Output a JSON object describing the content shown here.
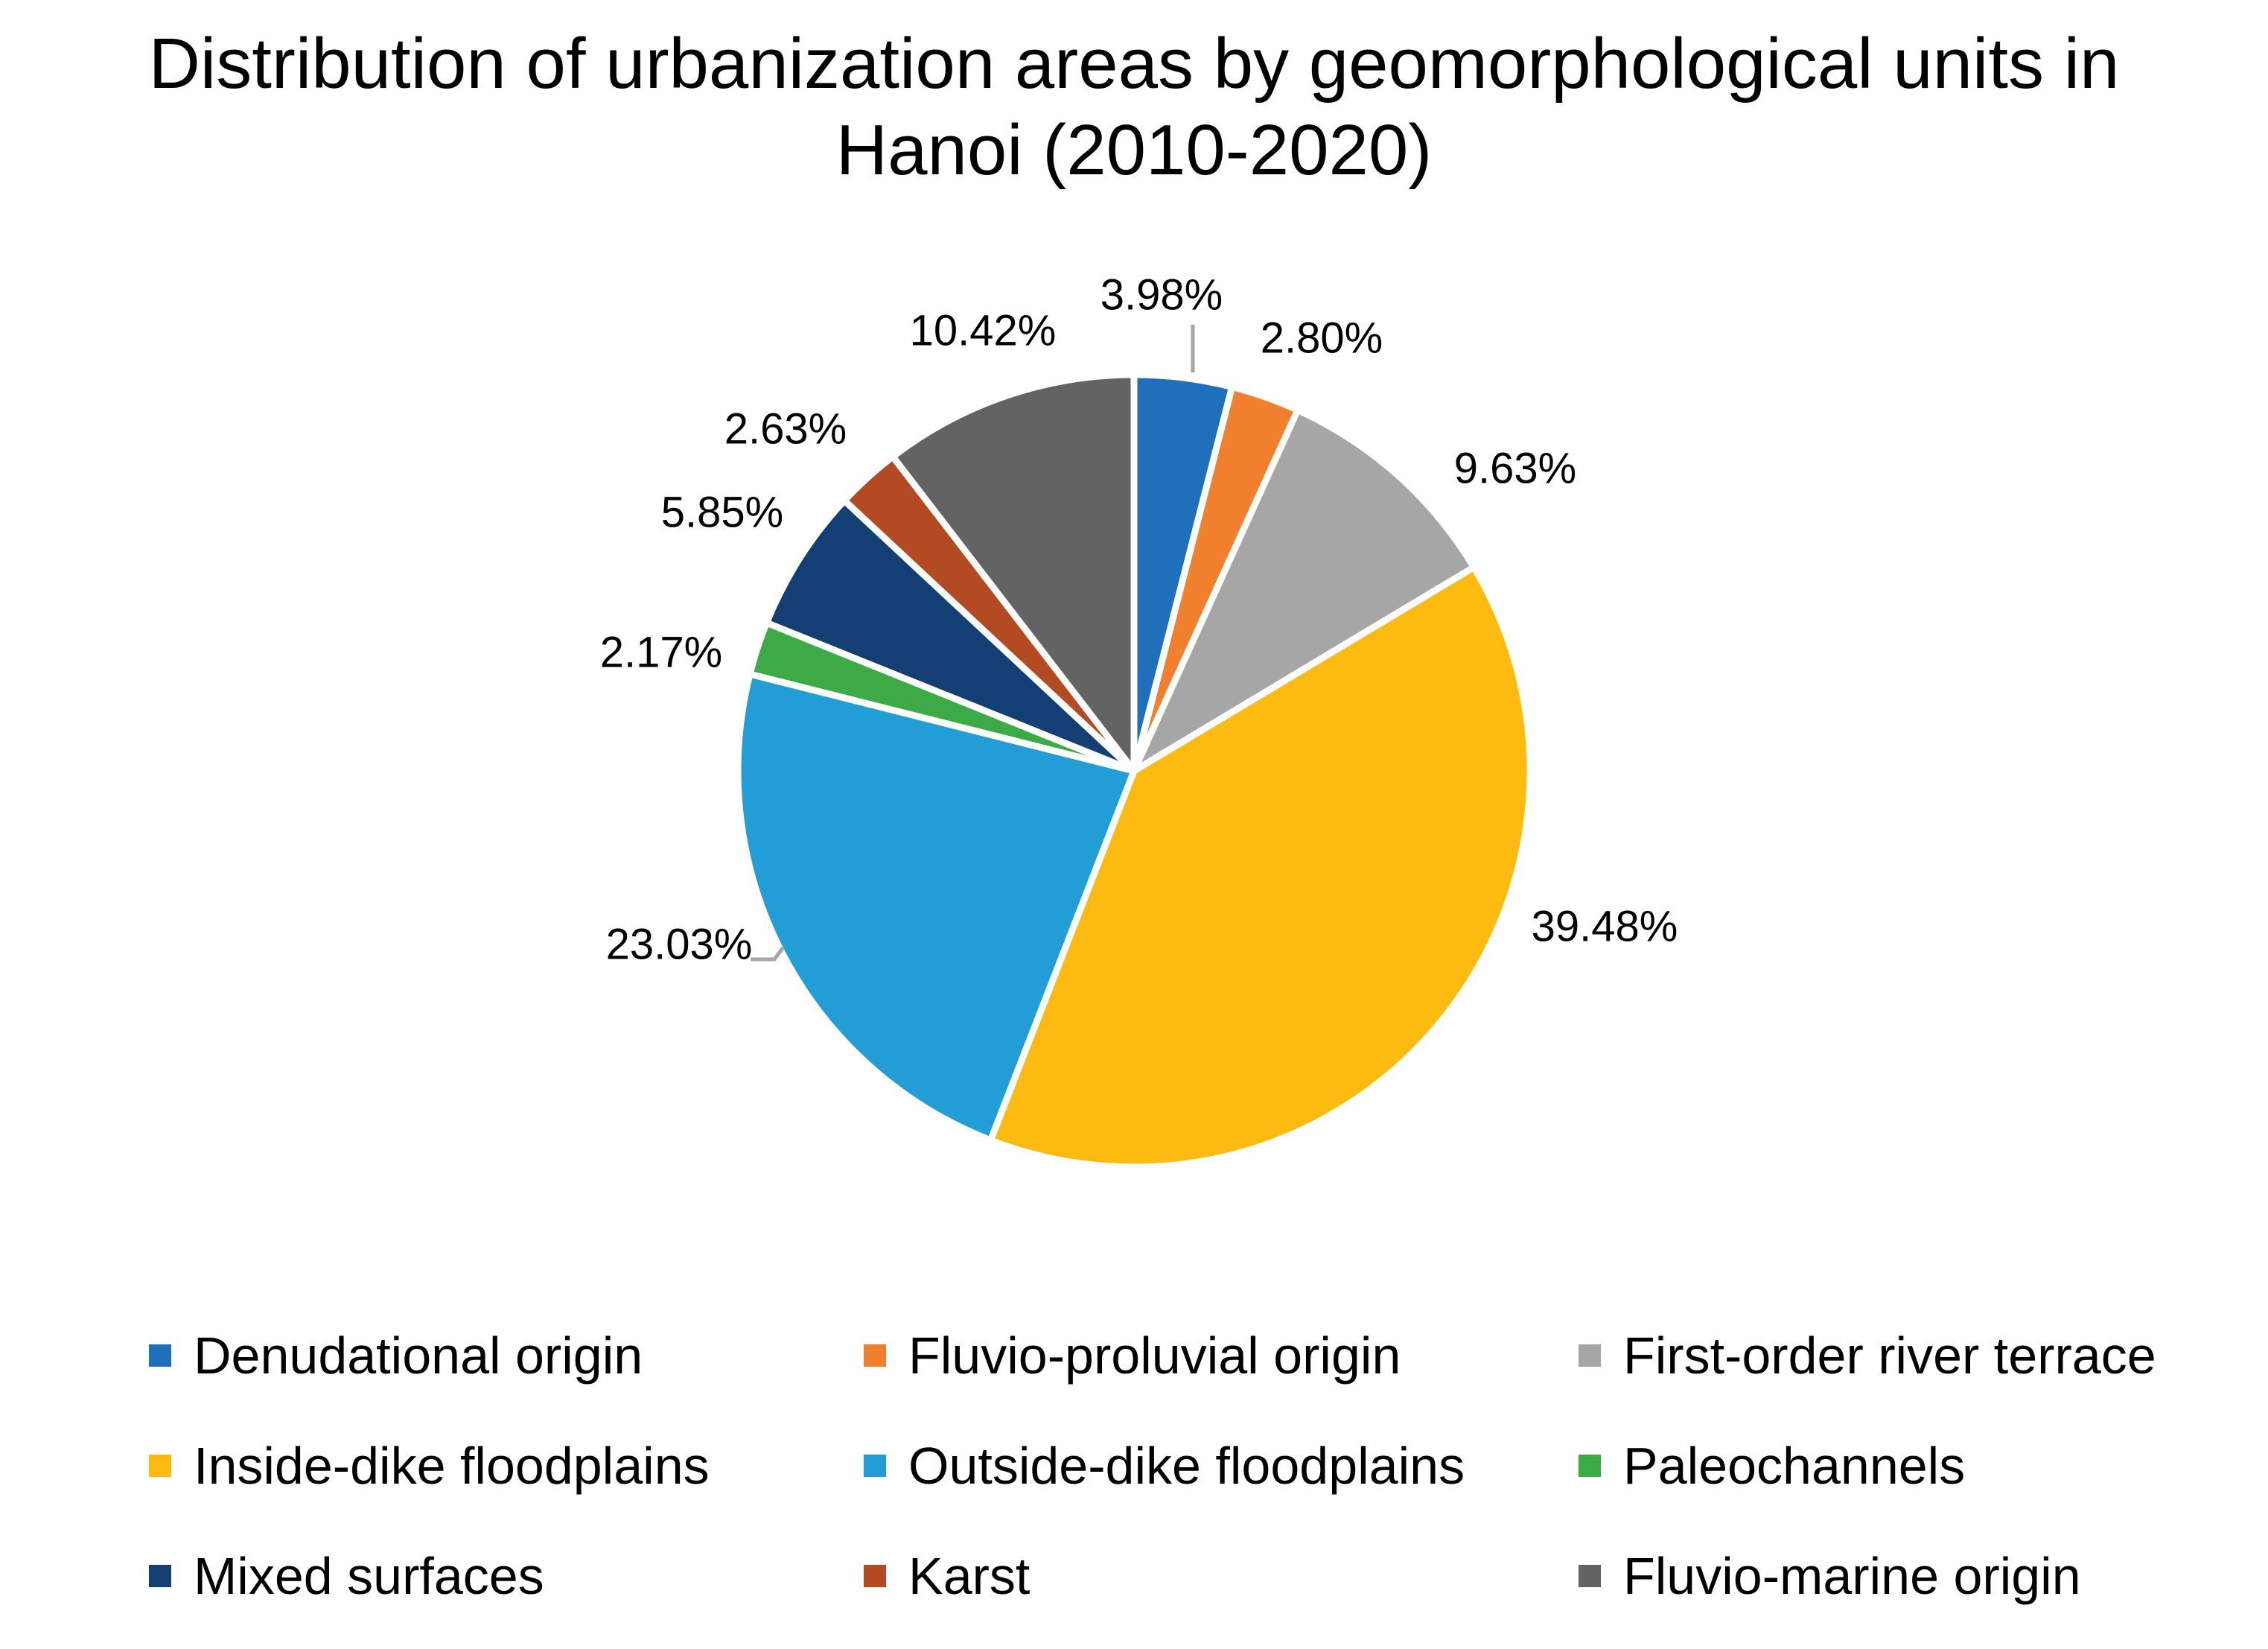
{
  "chart_data": {
    "type": "pie",
    "title_lines": [
      "Distribution of urbanization areas by geomorphological units in",
      "Hanoi (2010-2020)"
    ],
    "slices": [
      {
        "name": "Denudational origin",
        "value": 3.98,
        "label": "3.98%",
        "color": "#1F6FBA"
      },
      {
        "name": "Fluvio-proluvial origin",
        "value": 2.8,
        "label": "2.80%",
        "color": "#F07F2E"
      },
      {
        "name": "First-order river terrace",
        "value": 9.63,
        "label": "9.63%",
        "color": "#A6A6A6"
      },
      {
        "name": "Inside-dike floodplains",
        "value": 39.48,
        "label": "39.48%",
        "color": "#FDBB12"
      },
      {
        "name": "Outside-dike floodplains",
        "value": 23.03,
        "label": "23.03%",
        "color": "#229DD6"
      },
      {
        "name": "Paleochannels",
        "value": 2.17,
        "label": "2.17%",
        "color": "#3BAA47"
      },
      {
        "name": "Mixed surfaces",
        "value": 5.85,
        "label": "5.85%",
        "color": "#133F74"
      },
      {
        "name": "Karst",
        "value": 2.63,
        "label": "2.63%",
        "color": "#B44A22"
      },
      {
        "name": "Fluvio-marine origin",
        "value": 10.42,
        "label": "10.42%",
        "color": "#636363"
      }
    ],
    "legend_position": "bottom",
    "start_angle": "12 o'clock",
    "direction": "clockwise"
  }
}
